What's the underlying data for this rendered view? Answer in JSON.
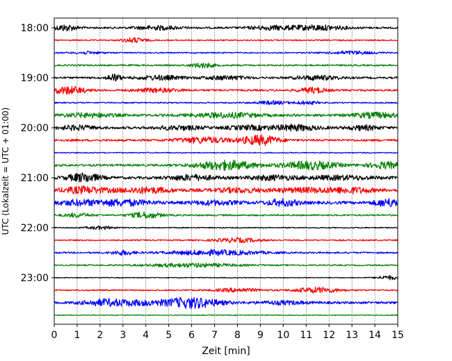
{
  "chart_data": {
    "type": "line",
    "title": "",
    "xlabel": "Zeit  [min]",
    "ylabel": "UTC (Lokalzeit = UTC + 01:00)",
    "xlim": [
      0,
      15
    ],
    "x_ticks": [
      0,
      1,
      2,
      3,
      4,
      5,
      6,
      7,
      8,
      9,
      10,
      11,
      12,
      13,
      14,
      15
    ],
    "x_tick_labels": [
      "0",
      "1",
      "2",
      "3",
      "4",
      "5",
      "6",
      "7",
      "8",
      "9",
      "10",
      "11",
      "12",
      "13",
      "14",
      "15"
    ],
    "y_ticks": [
      "18:00",
      "19:00",
      "20:00",
      "21:00",
      "22:00",
      "23:00"
    ],
    "grid": "vertical dotted",
    "colors_cycle": [
      "#000000",
      "#ff0000",
      "#0000ff",
      "#008000"
    ],
    "rows": [
      {
        "start": "18:00",
        "color": "#000000",
        "amp": 0.7,
        "bursts": [
          [
            0.5,
            0.5,
            1.0
          ],
          [
            4.5,
            1.0,
            0.6
          ],
          [
            9.5,
            1.0,
            0.6
          ],
          [
            11.5,
            1.2,
            0.8
          ]
        ]
      },
      {
        "start": "18:15",
        "color": "#ff0000",
        "amp": 0.5,
        "bursts": [
          [
            3.5,
            0.5,
            0.8
          ]
        ]
      },
      {
        "start": "18:30",
        "color": "#0000ff",
        "amp": 0.5,
        "bursts": [
          [
            1.5,
            0.6,
            0.4
          ],
          [
            13,
            1,
            0.5
          ]
        ]
      },
      {
        "start": "18:45",
        "color": "#008000",
        "amp": 0.6,
        "bursts": [
          [
            6.5,
            0.5,
            0.8
          ]
        ]
      },
      {
        "start": "19:00",
        "color": "#000000",
        "amp": 0.7,
        "bursts": [
          [
            2.6,
            0.3,
            1.2
          ],
          [
            4.6,
            1.0,
            0.7
          ],
          [
            7.5,
            1.0,
            0.6
          ],
          [
            11.5,
            1.0,
            0.7
          ]
        ]
      },
      {
        "start": "19:15",
        "color": "#ff0000",
        "amp": 0.7,
        "bursts": [
          [
            0.6,
            0.8,
            1.2
          ],
          [
            4.5,
            1.0,
            0.6
          ],
          [
            11.3,
            0.6,
            0.9
          ]
        ]
      },
      {
        "start": "19:30",
        "color": "#0000ff",
        "amp": 0.5,
        "bursts": [
          [
            9.5,
            0.8,
            0.5
          ],
          [
            11,
            0.5,
            0.5
          ]
        ]
      },
      {
        "start": "19:45",
        "color": "#008000",
        "amp": 0.9,
        "bursts": [
          [
            1.5,
            1.2,
            0.6
          ],
          [
            7.5,
            1.5,
            0.7
          ],
          [
            14,
            1,
            0.8
          ]
        ]
      },
      {
        "start": "20:00",
        "color": "#000000",
        "amp": 0.9,
        "bursts": [
          [
            1.0,
            0.8,
            0.7
          ],
          [
            5.5,
            1,
            0.6
          ],
          [
            8.5,
            1,
            0.6
          ],
          [
            10.5,
            1,
            0.9
          ],
          [
            13.5,
            0.7,
            0.7
          ]
        ]
      },
      {
        "start": "20:15",
        "color": "#ff0000",
        "amp": 0.8,
        "bursts": [
          [
            6.5,
            1.2,
            0.9
          ],
          [
            9,
            0.8,
            1.6
          ]
        ]
      },
      {
        "start": "20:30",
        "color": "#0000ff",
        "amp": 0.4,
        "bursts": []
      },
      {
        "start": "20:45",
        "color": "#008000",
        "amp": 0.8,
        "bursts": [
          [
            7.5,
            1.3,
            1.5
          ],
          [
            11.2,
            1.2,
            1.3
          ],
          [
            14.5,
            0.8,
            1.0
          ]
        ]
      },
      {
        "start": "21:00",
        "color": "#000000",
        "amp": 1.0,
        "bursts": [
          [
            1.3,
            0.7,
            1.4
          ],
          [
            6,
            1,
            0.8
          ],
          [
            9.5,
            1,
            0.7
          ],
          [
            12.5,
            1.5,
            0.6
          ]
        ]
      },
      {
        "start": "21:15",
        "color": "#ff0000",
        "amp": 1.1,
        "bursts": [
          [
            1.3,
            1.0,
            1.0
          ],
          [
            4,
            1.2,
            0.8
          ],
          [
            8,
            1,
            0.6
          ],
          [
            11,
            1.5,
            0.6
          ],
          [
            13,
            1,
            0.7
          ]
        ]
      },
      {
        "start": "21:30",
        "color": "#0000ff",
        "amp": 1.1,
        "bursts": [
          [
            1,
            1,
            0.7
          ],
          [
            3,
            1.2,
            0.9
          ],
          [
            7,
            1,
            0.6
          ],
          [
            10,
            0.7,
            1.0
          ],
          [
            14.6,
            0.6,
            1.2
          ]
        ]
      },
      {
        "start": "21:45",
        "color": "#008000",
        "amp": 0.6,
        "bursts": [
          [
            1,
            0.6,
            0.6
          ],
          [
            4,
            0.7,
            1.0
          ]
        ]
      },
      {
        "start": "22:00",
        "color": "#000000",
        "amp": 0.4,
        "bursts": [
          [
            2,
            0.6,
            0.5
          ]
        ]
      },
      {
        "start": "22:15",
        "color": "#ff0000",
        "amp": 0.5,
        "bursts": [
          [
            8,
            1,
            0.7
          ]
        ]
      },
      {
        "start": "22:30",
        "color": "#0000ff",
        "amp": 0.6,
        "bursts": [
          [
            3,
            0.5,
            0.7
          ],
          [
            7,
            2,
            0.8
          ]
        ]
      },
      {
        "start": "22:45",
        "color": "#008000",
        "amp": 0.5,
        "bursts": [
          [
            6,
            2,
            0.6
          ]
        ]
      },
      {
        "start": "23:00",
        "color": "#000000",
        "amp": 0.3,
        "bursts": [
          [
            14.6,
            0.5,
            0.7
          ]
        ]
      },
      {
        "start": "23:15",
        "color": "#ff0000",
        "amp": 0.5,
        "bursts": [
          [
            8,
            1,
            0.6
          ],
          [
            11.5,
            1,
            0.9
          ]
        ]
      },
      {
        "start": "23:30",
        "color": "#0000ff",
        "amp": 0.9,
        "bursts": [
          [
            2.3,
            1.0,
            1.0
          ],
          [
            3.8,
            1.0,
            0.6
          ],
          [
            6,
            1.2,
            1.7
          ],
          [
            10,
            1,
            0.5
          ]
        ]
      },
      {
        "start": "23:45",
        "color": "#008000",
        "amp": 0.3,
        "bursts": []
      }
    ]
  }
}
